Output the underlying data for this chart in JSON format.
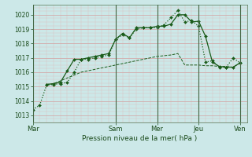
{
  "title": "",
  "xlabel": "Pression niveau de la mer( hPa )",
  "background_color": "#cce8e8",
  "grid_color_major": "#d4a0a0",
  "grid_color_minor": "#ddbfbf",
  "line_color": "#1a5c1a",
  "ylim": [
    1012.5,
    1020.7
  ],
  "yticks": [
    1013,
    1014,
    1015,
    1016,
    1017,
    1018,
    1019,
    1020
  ],
  "x_day_labels": [
    "Mar",
    "Sam",
    "Mer",
    "Jeu",
    "Ven"
  ],
  "x_day_positions": [
    0,
    12,
    18,
    24,
    30
  ],
  "xlim": [
    0,
    31
  ],
  "series1_x": [
    0,
    1,
    2,
    3,
    4,
    5,
    6,
    7,
    8,
    9,
    10,
    11,
    12,
    13,
    14,
    15,
    16,
    17,
    18,
    19,
    20,
    21,
    22,
    23,
    24,
    25,
    26,
    27,
    28,
    29,
    30
  ],
  "series1_y": [
    1013.4,
    1013.7,
    1015.1,
    1015.15,
    1015.2,
    1015.3,
    1016.0,
    1016.9,
    1016.9,
    1017.0,
    1017.1,
    1017.2,
    1018.3,
    1018.6,
    1018.4,
    1019.0,
    1019.1,
    1019.1,
    1019.1,
    1019.3,
    1019.8,
    1020.3,
    1019.5,
    1019.6,
    1019.2,
    1016.7,
    1016.8,
    1016.35,
    1016.35,
    1017.0,
    1016.65
  ],
  "series2_x": [
    2,
    3,
    4,
    5,
    6,
    7,
    8,
    9,
    10,
    11,
    12,
    13,
    14,
    15,
    16,
    17,
    18,
    19,
    20,
    21,
    22,
    23,
    24,
    25,
    26,
    27,
    28,
    29,
    30
  ],
  "series2_y": [
    1015.15,
    1015.2,
    1015.3,
    1016.1,
    1016.9,
    1016.9,
    1017.0,
    1017.1,
    1017.2,
    1017.3,
    1018.3,
    1018.7,
    1018.4,
    1019.1,
    1019.1,
    1019.1,
    1019.2,
    1019.2,
    1019.35,
    1020.0,
    1020.0,
    1019.5,
    1019.55,
    1018.5,
    1016.7,
    1016.4,
    1016.35,
    1016.35,
    1016.65
  ],
  "series3_x": [
    2,
    3,
    4,
    5,
    6,
    7,
    8,
    9,
    10,
    11,
    12,
    13,
    14,
    15,
    16,
    17,
    18,
    19,
    20,
    21,
    22,
    23,
    24,
    25,
    26,
    27,
    28,
    29,
    30
  ],
  "series3_y": [
    1015.15,
    1015.2,
    1015.4,
    1015.6,
    1015.8,
    1016.0,
    1016.1,
    1016.2,
    1016.3,
    1016.4,
    1016.5,
    1016.6,
    1016.7,
    1016.8,
    1016.9,
    1017.0,
    1017.1,
    1017.15,
    1017.2,
    1017.3,
    1016.5,
    1016.5,
    1016.5,
    1016.45,
    1016.45,
    1016.4,
    1016.4,
    1016.35,
    1016.65
  ],
  "ylabel_fontsize": 6.5,
  "ytick_fontsize": 5.5,
  "xtick_fontsize": 6.0,
  "xlabel_fontsize": 6.5
}
